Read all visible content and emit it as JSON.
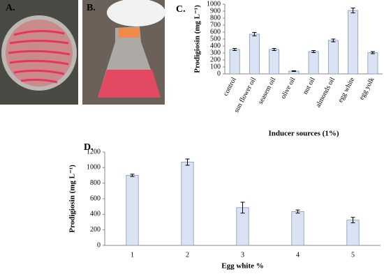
{
  "panels": {
    "a": "A.",
    "b": "B."
  },
  "chart_data": [
    {
      "type": "bar",
      "panel_label": "C.",
      "ylabel": "Prodigiosin (mg L⁻¹)",
      "xlabel": "Inducer sources (1%)",
      "categories": [
        "control",
        "sun flower oil",
        "seasem oil",
        "olive oil",
        "nut oil",
        "almonds oil",
        "egg white",
        "egg yolk"
      ],
      "values": [
        350,
        570,
        350,
        40,
        320,
        480,
        910,
        305
      ],
      "errors": [
        15,
        25,
        15,
        5,
        15,
        20,
        35,
        15
      ],
      "color": "#dae3f3",
      "ylim": [
        0,
        1000
      ],
      "yticks": [
        0,
        100,
        200,
        300,
        400,
        500,
        600,
        700,
        800,
        900,
        1000
      ],
      "grid": false
    },
    {
      "type": "bar",
      "panel_label": "D.",
      "ylabel": "Prodigiosin (mg L⁻¹)",
      "xlabel": "Egg white %",
      "categories": [
        "1",
        "2",
        "3",
        "4",
        "5"
      ],
      "values": [
        900,
        1070,
        485,
        435,
        325
      ],
      "errors": [
        15,
        40,
        70,
        20,
        35
      ],
      "color": "#dae3f3",
      "ylim": [
        0,
        1200
      ],
      "yticks": [
        0,
        200,
        400,
        600,
        800,
        1000,
        1200
      ],
      "grid": false
    }
  ]
}
